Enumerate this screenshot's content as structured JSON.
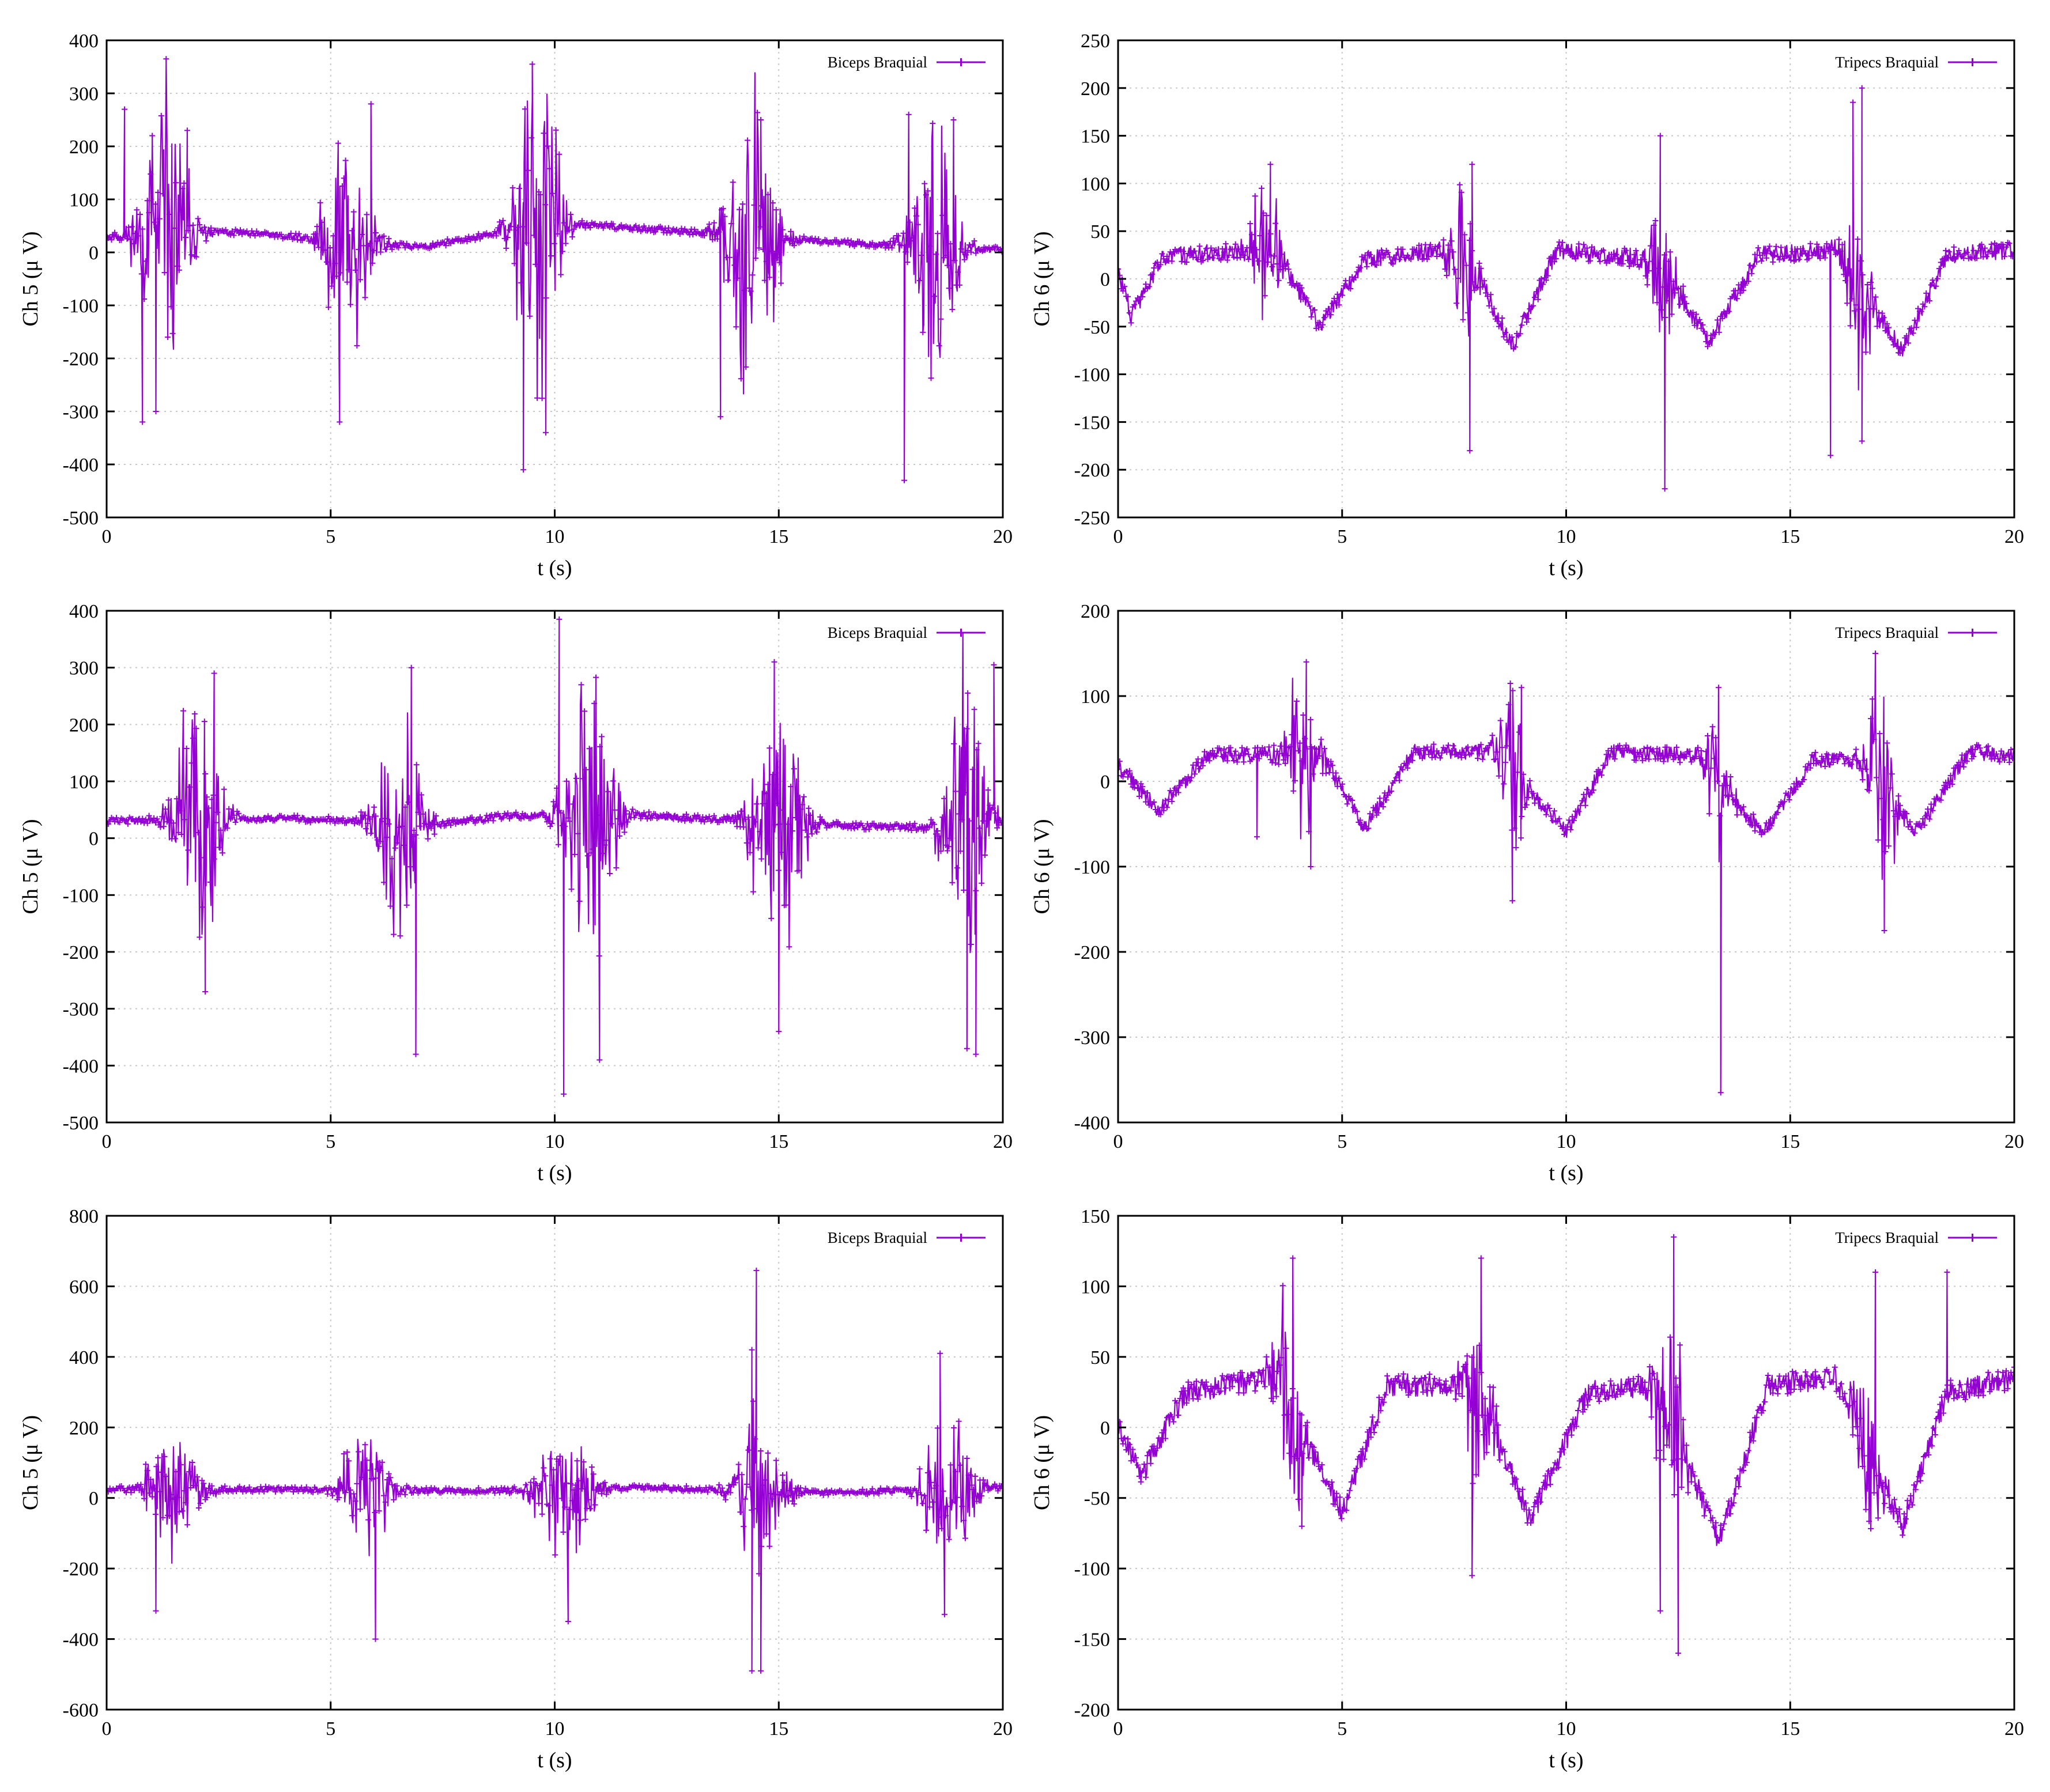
{
  "figure": {
    "panels_per_row": 2,
    "series_color": "#9400d3"
  },
  "chart_data": [
    {
      "type": "line",
      "xlabel": "t (s)",
      "ylabel": "Ch 5 (μ V)",
      "xlim": [
        0,
        20
      ],
      "ylim": [
        -500,
        400
      ],
      "xticks": [
        0,
        5,
        10,
        15,
        20
      ],
      "yticks": [
        -500,
        -400,
        -300,
        -200,
        -100,
        0,
        100,
        200,
        300,
        400
      ],
      "grid": true,
      "legend_position": "top-right",
      "series": [
        {
          "name": "Biceps Braquial",
          "color": "#9400d3",
          "marker": "plus",
          "baseline": [
            [
              0,
              30
            ],
            [
              3,
              38
            ],
            [
              7,
              10
            ],
            [
              10,
              55
            ],
            [
              12,
              45
            ],
            [
              16,
              20
            ],
            [
              20,
              5
            ]
          ],
          "bursts": [
            {
              "center": 1.3,
              "width": 1.3,
              "amp": 160
            },
            {
              "center": 5.4,
              "width": 1.2,
              "amp": 140
            },
            {
              "center": 9.6,
              "width": 1.2,
              "amp": 190
            },
            {
              "center": 14.4,
              "width": 1.3,
              "amp": 160
            },
            {
              "center": 18.5,
              "width": 1.2,
              "amp": 150
            }
          ],
          "spikes": [
            [
              0.4,
              270
            ],
            [
              0.8,
              -320
            ],
            [
              1.1,
              -300
            ],
            [
              1.8,
              230
            ],
            [
              5.2,
              -320
            ],
            [
              5.9,
              280
            ],
            [
              9.3,
              -410
            ],
            [
              9.5,
              355
            ],
            [
              9.8,
              -340
            ],
            [
              13.7,
              -310
            ],
            [
              14.6,
              250
            ],
            [
              17.8,
              -430
            ],
            [
              17.9,
              260
            ],
            [
              18.9,
              250
            ]
          ],
          "noise": 6,
          "seed": 11
        }
      ]
    },
    {
      "type": "line",
      "xlabel": "t (s)",
      "ylabel": "Ch 6 (μ V)",
      "xlim": [
        0,
        20
      ],
      "ylim": [
        -250,
        250
      ],
      "xticks": [
        0,
        5,
        10,
        15,
        20
      ],
      "yticks": [
        -250,
        -200,
        -150,
        -100,
        -50,
        0,
        50,
        100,
        150,
        200,
        250
      ],
      "grid": true,
      "legend_position": "top-right",
      "series": [
        {
          "name": "Tripecs Braquial",
          "color": "#9400d3",
          "marker": "plus",
          "baseline": [
            [
              0,
              10
            ],
            [
              0.3,
              -40
            ],
            [
              1,
              25
            ],
            [
              3.5,
              30
            ],
            [
              4.5,
              -50
            ],
            [
              5.5,
              20
            ],
            [
              7,
              30
            ],
            [
              8,
              5
            ],
            [
              8.8,
              -70
            ],
            [
              9.8,
              30
            ],
            [
              12,
              20
            ],
            [
              13.2,
              -65
            ],
            [
              14.3,
              25
            ],
            [
              16,
              30
            ],
            [
              17.5,
              -75
            ],
            [
              18.5,
              25
            ],
            [
              20,
              30
            ]
          ],
          "bursts": [
            {
              "center": 3.3,
              "width": 0.8,
              "amp": 45
            },
            {
              "center": 7.7,
              "width": 0.8,
              "amp": 50
            },
            {
              "center": 12.1,
              "width": 0.8,
              "amp": 55
            },
            {
              "center": 16.5,
              "width": 0.8,
              "amp": 60
            }
          ],
          "spikes": [
            [
              3.4,
              120
            ],
            [
              7.9,
              120
            ],
            [
              7.85,
              -180
            ],
            [
              12.1,
              150
            ],
            [
              12.2,
              -220
            ],
            [
              15.9,
              -185
            ],
            [
              16.4,
              185
            ],
            [
              16.6,
              200
            ],
            [
              16.6,
              -170
            ]
          ],
          "noise": 9,
          "seed": 23
        }
      ]
    },
    {
      "type": "line",
      "xlabel": "t (s)",
      "ylabel": "Ch 5 (μ V)",
      "xlim": [
        0,
        20
      ],
      "ylim": [
        -500,
        400
      ],
      "xticks": [
        0,
        5,
        10,
        15,
        20
      ],
      "yticks": [
        -500,
        -400,
        -300,
        -200,
        -100,
        0,
        100,
        200,
        300,
        400
      ],
      "grid": true,
      "legend_position": "top-right",
      "series": [
        {
          "name": "Biceps Braquial",
          "color": "#9400d3",
          "marker": "plus",
          "baseline": [
            [
              0,
              30
            ],
            [
              4,
              35
            ],
            [
              7.5,
              25
            ],
            [
              9,
              40
            ],
            [
              12,
              40
            ],
            [
              17,
              20
            ],
            [
              20,
              20
            ]
          ],
          "bursts": [
            {
              "center": 2.0,
              "width": 1.2,
              "amp": 150
            },
            {
              "center": 6.5,
              "width": 1.2,
              "amp": 140
            },
            {
              "center": 10.8,
              "width": 1.3,
              "amp": 170
            },
            {
              "center": 15.0,
              "width": 1.3,
              "amp": 160
            },
            {
              "center": 19.2,
              "width": 1.2,
              "amp": 170
            }
          ],
          "spikes": [
            [
              2.4,
              290
            ],
            [
              2.2,
              -270
            ],
            [
              6.8,
              300
            ],
            [
              6.9,
              -380
            ],
            [
              10.1,
              385
            ],
            [
              10.2,
              -450
            ],
            [
              11.0,
              -390
            ],
            [
              14.9,
              310
            ],
            [
              15.0,
              -340
            ],
            [
              19.2,
              -370
            ],
            [
              19.4,
              -380
            ],
            [
              19.8,
              305
            ]
          ],
          "noise": 6,
          "seed": 37
        }
      ]
    },
    {
      "type": "line",
      "xlabel": "t (s)",
      "ylabel": "Ch 6 (μ V)",
      "xlim": [
        0,
        20
      ],
      "ylim": [
        -400,
        200
      ],
      "xticks": [
        0,
        5,
        10,
        15,
        20
      ],
      "yticks": [
        -400,
        -300,
        -200,
        -100,
        0,
        100,
        200
      ],
      "grid": true,
      "legend_position": "top-right",
      "series": [
        {
          "name": "Tripecs Braquial",
          "color": "#9400d3",
          "marker": "plus",
          "baseline": [
            [
              0,
              20
            ],
            [
              0.9,
              -35
            ],
            [
              2,
              30
            ],
            [
              4.5,
              35
            ],
            [
              5.5,
              -55
            ],
            [
              6.6,
              35
            ],
            [
              8.5,
              35
            ],
            [
              10,
              -60
            ],
            [
              11,
              35
            ],
            [
              13,
              30
            ],
            [
              13.5,
              -10
            ],
            [
              14.4,
              -60
            ],
            [
              15.5,
              25
            ],
            [
              16.5,
              25
            ],
            [
              17.8,
              -60
            ],
            [
              19,
              35
            ],
            [
              20,
              30
            ]
          ],
          "bursts": [
            {
              "center": 4.1,
              "width": 0.9,
              "amp": 55
            },
            {
              "center": 8.8,
              "width": 0.8,
              "amp": 55
            },
            {
              "center": 13.4,
              "width": 0.7,
              "amp": 50
            },
            {
              "center": 17.0,
              "width": 0.8,
              "amp": 75
            }
          ],
          "spikes": [
            [
              3.1,
              -65
            ],
            [
              4.2,
              140
            ],
            [
              4.3,
              -100
            ],
            [
              8.8,
              -140
            ],
            [
              9.0,
              110
            ],
            [
              13.4,
              110
            ],
            [
              13.45,
              -365
            ],
            [
              16.9,
              150
            ],
            [
              17.1,
              -175
            ]
          ],
          "noise": 9,
          "seed": 41
        }
      ]
    },
    {
      "type": "line",
      "xlabel": "t (s)",
      "ylabel": "Ch 5 (μ V)",
      "xlim": [
        0,
        20
      ],
      "ylim": [
        -600,
        800
      ],
      "xticks": [
        0,
        5,
        10,
        15,
        20
      ],
      "yticks": [
        -600,
        -400,
        -200,
        0,
        200,
        400,
        600,
        800
      ],
      "grid": true,
      "legend_position": "top-right",
      "series": [
        {
          "name": "Biceps Braquial",
          "color": "#9400d3",
          "marker": "plus",
          "baseline": [
            [
              0,
              25
            ],
            [
              4,
              25
            ],
            [
              8,
              20
            ],
            [
              12,
              30
            ],
            [
              16,
              15
            ],
            [
              20,
              30
            ]
          ],
          "bursts": [
            {
              "center": 1.5,
              "width": 1.4,
              "amp": 110
            },
            {
              "center": 5.8,
              "width": 1.3,
              "amp": 110
            },
            {
              "center": 10.2,
              "width": 1.4,
              "amp": 120
            },
            {
              "center": 14.6,
              "width": 1.3,
              "amp": 140
            },
            {
              "center": 18.8,
              "width": 1.3,
              "amp": 130
            }
          ],
          "spikes": [
            [
              1.1,
              -320
            ],
            [
              6.0,
              -400
            ],
            [
              10.3,
              -350
            ],
            [
              14.4,
              420
            ],
            [
              14.5,
              645
            ],
            [
              14.4,
              -490
            ],
            [
              14.6,
              -490
            ],
            [
              18.6,
              410
            ],
            [
              18.7,
              -330
            ]
          ],
          "noise": 8,
          "seed": 53
        }
      ]
    },
    {
      "type": "line",
      "xlabel": "t (s)",
      "ylabel": "Ch 6 (μ V)",
      "xlim": [
        0,
        20
      ],
      "ylim": [
        -200,
        150
      ],
      "xticks": [
        0,
        5,
        10,
        15,
        20
      ],
      "yticks": [
        -200,
        -150,
        -100,
        -50,
        0,
        50,
        100,
        150
      ],
      "grid": true,
      "legend_position": "top-right",
      "series": [
        {
          "name": "Tripecs Braquial",
          "color": "#9400d3",
          "marker": "plus",
          "baseline": [
            [
              0,
              5
            ],
            [
              0.5,
              -35
            ],
            [
              1.5,
              25
            ],
            [
              3.5,
              35
            ],
            [
              5,
              -60
            ],
            [
              6,
              30
            ],
            [
              8,
              30
            ],
            [
              9.2,
              -65
            ],
            [
              10.5,
              25
            ],
            [
              12,
              30
            ],
            [
              13.4,
              -80
            ],
            [
              14.5,
              30
            ],
            [
              16,
              35
            ],
            [
              17.5,
              -70
            ],
            [
              18.5,
              25
            ],
            [
              20,
              35
            ]
          ],
          "bursts": [
            {
              "center": 3.8,
              "width": 0.9,
              "amp": 40
            },
            {
              "center": 8.0,
              "width": 0.9,
              "amp": 45
            },
            {
              "center": 12.3,
              "width": 0.8,
              "amp": 50
            },
            {
              "center": 16.7,
              "width": 0.8,
              "amp": 40
            }
          ],
          "spikes": [
            [
              3.9,
              120
            ],
            [
              4.1,
              -70
            ],
            [
              8.1,
              120
            ],
            [
              7.9,
              -105
            ],
            [
              12.4,
              135
            ],
            [
              12.5,
              -160
            ],
            [
              12.1,
              -130
            ],
            [
              16.9,
              110
            ],
            [
              18.5,
              110
            ]
          ],
          "noise": 8,
          "seed": 67
        }
      ]
    }
  ]
}
